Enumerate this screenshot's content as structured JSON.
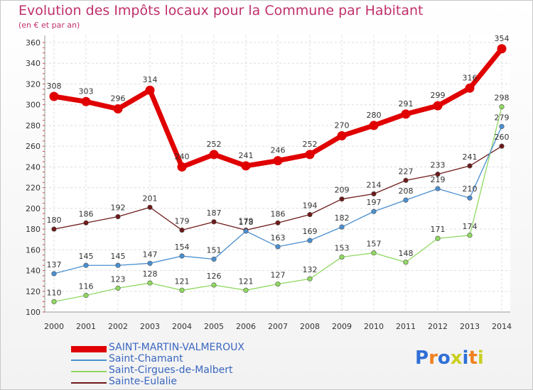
{
  "title": "Evolution des Impôts locaux pour la Commune par Habitant",
  "subtitle": "(en € et par an)",
  "chart_data": {
    "type": "line",
    "x": [
      "2000",
      "2001",
      "2002",
      "2003",
      "2004",
      "2005",
      "2006",
      "2007",
      "2008",
      "2009",
      "2010",
      "2011",
      "2012",
      "2013",
      "2014"
    ],
    "ylim": [
      100,
      360
    ],
    "yticks": [
      "100",
      "120",
      "140",
      "160",
      "180",
      "200",
      "220",
      "240",
      "260",
      "280",
      "300",
      "320",
      "340",
      "360"
    ],
    "grid": true,
    "legend_position": "bottom-left",
    "series": [
      {
        "name": "SAINT-MARTIN-VALMEROUX",
        "color": "#e00000",
        "values": [
          308,
          303,
          296,
          314,
          240,
          252,
          241,
          246,
          252,
          270,
          280,
          291,
          299,
          316,
          354
        ]
      },
      {
        "name": "Saint-Chamant",
        "color": "#4a8fd0",
        "values": [
          137,
          145,
          145,
          147,
          154,
          151,
          178,
          163,
          169,
          182,
          197,
          208,
          219,
          210,
          279
        ]
      },
      {
        "name": "Saint-Cirgues-de-Malbert",
        "color": "#8fd860",
        "values": [
          110,
          116,
          123,
          128,
          121,
          126,
          121,
          127,
          132,
          153,
          157,
          148,
          171,
          174,
          298
        ]
      },
      {
        "name": "Sainte-Eulalie",
        "color": "#6e1a1a",
        "values": [
          180,
          186,
          192,
          201,
          179,
          187,
          179,
          186,
          194,
          209,
          214,
          227,
          233,
          241,
          260
        ]
      }
    ]
  },
  "logo": {
    "text": "Proxiti",
    "colors": [
      "#2f6fd6",
      "#f08020",
      "#2f6fd6",
      "#c8d020",
      "#2f6fd6",
      "#f08020",
      "#c8d020"
    ]
  }
}
